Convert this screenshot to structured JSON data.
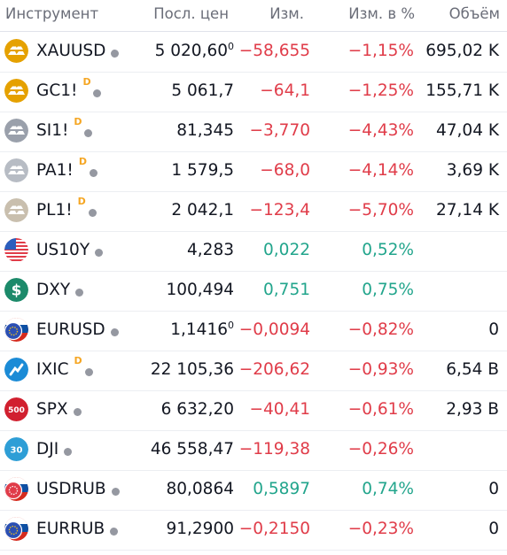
{
  "header": {
    "symbol": "Инструмент",
    "last": "Посл. цен",
    "change": "Изм.",
    "change_pct": "Изм. в %",
    "volume": "Объём"
  },
  "colors": {
    "negative": "#e03c49",
    "positive": "#22a58c",
    "delay_flag": "#f5a623"
  },
  "rows": [
    {
      "symbol": "XAUUSD",
      "delayed": false,
      "logo": "gold-bars-icon",
      "last": "5 020,60",
      "last_frac": "0",
      "change": "−58,655",
      "change_pct": "−1,15%",
      "volume": "695,02 K",
      "trend": "neg"
    },
    {
      "symbol": "GC1!",
      "delayed": true,
      "logo": "gold-bars-icon",
      "last": "5 061,7",
      "last_frac": "",
      "change": "−64,1",
      "change_pct": "−1,25%",
      "volume": "155,71 K",
      "trend": "neg"
    },
    {
      "symbol": "SI1!",
      "delayed": true,
      "logo": "silver-bars-icon",
      "last": "81,345",
      "last_frac": "",
      "change": "−3,770",
      "change_pct": "−4,43%",
      "volume": "47,04 K",
      "trend": "neg"
    },
    {
      "symbol": "PA1!",
      "delayed": true,
      "logo": "palladium-bars-icon",
      "last": "1 579,5",
      "last_frac": "",
      "change": "−68,0",
      "change_pct": "−4,14%",
      "volume": "3,69 K",
      "trend": "neg"
    },
    {
      "symbol": "PL1!",
      "delayed": true,
      "logo": "platinum-bars-icon",
      "last": "2 042,1",
      "last_frac": "",
      "change": "−123,4",
      "change_pct": "−5,70%",
      "volume": "27,14 K",
      "trend": "neg"
    },
    {
      "symbol": "US10Y",
      "delayed": false,
      "logo": "us-flag-icon",
      "last": "4,283",
      "last_frac": "",
      "change": "0,022",
      "change_pct": "0,52%",
      "volume": "",
      "trend": "pos"
    },
    {
      "symbol": "DXY",
      "delayed": false,
      "logo": "dollar-icon",
      "last": "100,494",
      "last_frac": "",
      "change": "0,751",
      "change_pct": "0,75%",
      "volume": "",
      "trend": "pos"
    },
    {
      "symbol": "EURUSD",
      "delayed": false,
      "logo": "eu-us-flags-icon",
      "last": "1,1416",
      "last_frac": "0",
      "change": "−0,0094",
      "change_pct": "−0,82%",
      "volume": "0",
      "trend": "neg"
    },
    {
      "symbol": "IXIC",
      "delayed": true,
      "logo": "nasdaq-icon",
      "last": "22 105,36",
      "last_frac": "",
      "change": "−206,62",
      "change_pct": "−0,93%",
      "volume": "6,54 B",
      "trend": "neg"
    },
    {
      "symbol": "SPX",
      "delayed": false,
      "logo": "sp500-icon",
      "last": "6 632,20",
      "last_frac": "",
      "change": "−40,41",
      "change_pct": "−0,61%",
      "volume": "2,93 B",
      "trend": "neg"
    },
    {
      "symbol": "DJI",
      "delayed": false,
      "logo": "dow30-icon",
      "last": "46 558,47",
      "last_frac": "",
      "change": "−119,38",
      "change_pct": "−0,26%",
      "volume": "",
      "trend": "neg"
    },
    {
      "symbol": "USDRUB",
      "delayed": false,
      "logo": "us-ru-flags-icon",
      "last": "80,0864",
      "last_frac": "",
      "change": "0,5897",
      "change_pct": "0,74%",
      "volume": "0",
      "trend": "pos"
    },
    {
      "symbol": "EURRUB",
      "delayed": false,
      "logo": "eu-ru-flags-icon",
      "last": "91,2900",
      "last_frac": "",
      "change": "−0,2150",
      "change_pct": "−0,23%",
      "volume": "0",
      "trend": "neg"
    }
  ],
  "delay_label": "D",
  "sp500_badge": "500",
  "dow_badge": "30"
}
